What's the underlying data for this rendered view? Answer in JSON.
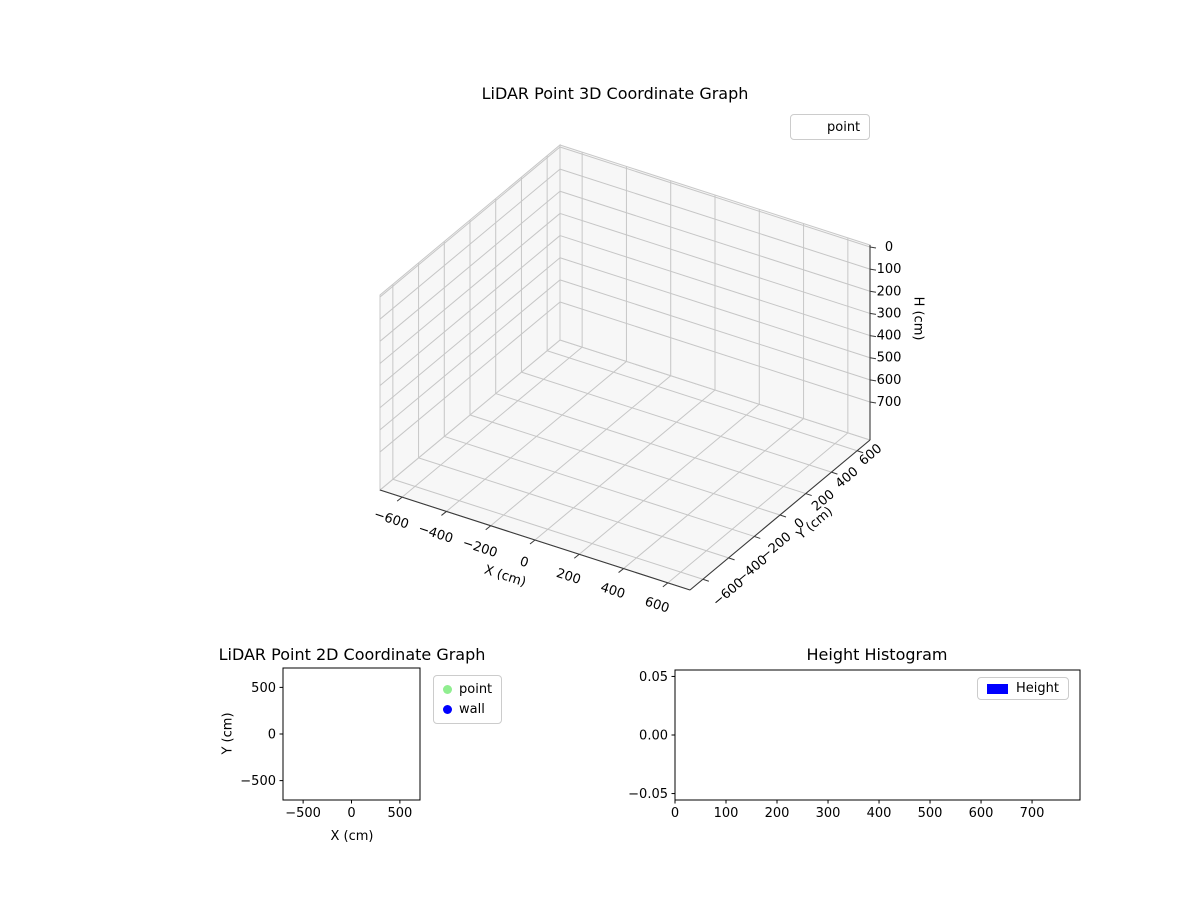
{
  "figure": {
    "background": "#ffffff"
  },
  "colors": {
    "pane": "#f2f2f2",
    "pane_edge": "#c8c8c8",
    "grid": "#c6c6c6",
    "axis3d": "#3a3a3a",
    "frame2d": "#000000",
    "text": "#000000",
    "legend_border": "#cccccc"
  },
  "chart_data": [
    {
      "id": "plot3d",
      "type": "scatter3d",
      "title": "LiDAR Point 3D Coordinate Graph",
      "xlabel": "X (cm)",
      "ylabel": "Y (cm)",
      "zlabel": "H (cm)",
      "xticks": [
        -600,
        -400,
        -200,
        0,
        200,
        400,
        600
      ],
      "yticks": [
        -600,
        -400,
        -200,
        0,
        200,
        400,
        600
      ],
      "zticks": [
        0,
        100,
        200,
        300,
        400,
        500,
        600,
        700
      ],
      "xlim": [
        -700,
        700
      ],
      "ylim": [
        -700,
        700
      ],
      "zlim": [
        0,
        700
      ],
      "zaxis_inverted": true,
      "grid": true,
      "legend": {
        "position": "upper right",
        "entries": [
          {
            "label": "point",
            "marker": "none"
          }
        ]
      },
      "points": []
    },
    {
      "id": "plot2d",
      "type": "scatter",
      "title": "LiDAR Point 2D Coordinate Graph",
      "xlabel": "X (cm)",
      "ylabel": "Y (cm)",
      "xticks": [
        -500,
        0,
        500
      ],
      "yticks": [
        -500,
        0,
        500
      ],
      "xlim": [
        -708,
        708
      ],
      "ylim": [
        -708,
        708
      ],
      "grid": false,
      "legend": {
        "position": "outside right",
        "entries": [
          {
            "label": "point",
            "color": "#90ee90",
            "marker": "circle"
          },
          {
            "label": "wall",
            "color": "#0000ff",
            "marker": "circle"
          }
        ]
      },
      "points": []
    },
    {
      "id": "histogram",
      "type": "bar",
      "title": "Height Histogram",
      "xlabel": "",
      "ylabel": "",
      "xticks": [
        0,
        100,
        200,
        300,
        400,
        500,
        600,
        700
      ],
      "yticks": [
        -0.05,
        0.0,
        0.05
      ],
      "ytick_decimals": 2,
      "xlim": [
        0,
        794
      ],
      "ylim": [
        -0.0555,
        0.0555
      ],
      "grid": false,
      "legend": {
        "position": "upper right",
        "entries": [
          {
            "label": "Height",
            "color": "#0000ff",
            "marker": "rect"
          }
        ]
      },
      "values": []
    }
  ]
}
